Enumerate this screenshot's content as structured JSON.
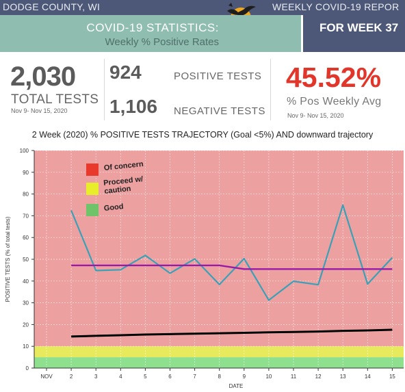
{
  "header": {
    "left_title": "DODGE COUNTY, WI",
    "right_title": "WEEKLY COVID-19 REPOR"
  },
  "banner": {
    "title": "COVID-19 STATISTICS:",
    "subtitle": "Weekly % Positive Rates",
    "week": "FOR WEEK 37"
  },
  "stats": {
    "total_tests_value": "2,030",
    "total_tests_label": "TOTAL TESTS",
    "total_tests_dates": "Nov 9- Nov 15, 2020",
    "positive_value": "924",
    "positive_label": "POSITIVE TESTS",
    "negative_value": "1,106",
    "negative_label": "NEGATIVE TESTS",
    "pct_value": "45.52%",
    "pct_label": "% Pos Weekly Avg",
    "pct_dates": "Nov 9- Nov 15, 2020"
  },
  "colors": {
    "header_bg": "#4d5878",
    "banner_green": "#8fbdb0",
    "pct_red": "#e3362b",
    "zone_red": "#eca0a0",
    "zone_yellow": "#e6ea5c",
    "zone_green": "#8ee08e",
    "series_daily": "#3aa0b8",
    "series_avg": "#9a1aa8",
    "series_trend": "#000000"
  },
  "chart_data": {
    "type": "line",
    "title": "2 Week (2020) % POSITIVE TESTS TRAJECTORY (Goal <5%) AND downward trajectory",
    "xlabel": "DATE",
    "ylabel": "POSITIVE TESTS (% of total tests)",
    "ylim": [
      0,
      100
    ],
    "yticks": [
      "0",
      "10",
      "20",
      "30",
      "40",
      "50",
      "60",
      "70",
      "80",
      "90",
      "100"
    ],
    "categories": [
      "NOV",
      "2",
      "3",
      "4",
      "5",
      "6",
      "7",
      "8",
      "9",
      "10",
      "11",
      "12",
      "13",
      "14",
      "15"
    ],
    "zones": [
      {
        "label": "Good",
        "from": 0,
        "to": 5,
        "color": "#8ee08e"
      },
      {
        "label": "Proceed w/ caution",
        "from": 5,
        "to": 10,
        "color": "#e6ea5c"
      },
      {
        "label": "Of concern",
        "from": 10,
        "to": 100,
        "color": "#eca0a0"
      }
    ],
    "legend": [
      {
        "label": "Of concern",
        "color": "#e8392c"
      },
      {
        "label": "Proceed w/ caution",
        "color": "#e8ef2a"
      },
      {
        "label": "Good",
        "color": "#6fc46a"
      }
    ],
    "legend_lines": [
      [
        "Of concern"
      ],
      [
        "Proceed w/",
        "caution"
      ],
      [
        "Good"
      ]
    ],
    "series": [
      {
        "values": [
          null,
          72.5,
          44.8,
          45.2,
          51.8,
          43.6,
          50.2,
          38.4,
          50.3,
          31.2,
          39.9,
          38.3,
          74.9,
          38.6,
          50.8
        ]
      },
      {
        "values": [
          null,
          47.2,
          47.2,
          47.2,
          47.2,
          47.2,
          47.2,
          47.2,
          45.5,
          45.5,
          45.5,
          45.5,
          45.5,
          45.5,
          45.5
        ]
      },
      {
        "values": [
          null,
          14.5,
          14.8,
          15.1,
          15.4,
          15.6,
          15.8,
          16.0,
          16.2,
          16.4,
          16.6,
          16.8,
          17.1,
          17.3,
          17.6
        ]
      }
    ]
  }
}
